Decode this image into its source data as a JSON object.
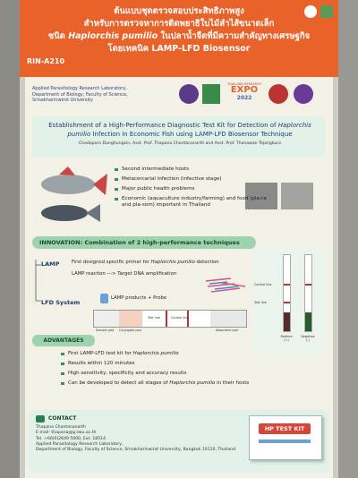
{
  "header": {
    "thai_lines": [
      "ต้นแบบชุดตรวจสอบประสิทธิภาพสูง",
      "สำหรับการตรวจหาการติดพยาธิใบไม้ลำไส้ขนาดเล็ก",
      [
        "ชนิด ",
        "Haplorchis pumilio",
        " ในปลาน้ำจืดที่มีความสำคัญทางเศรษฐกิจ"
      ],
      "โดยเทคนิค LAMP-LFD Biosensor"
    ],
    "code": "RIN-A210"
  },
  "affiliation": [
    "Applied Parasitology Research Laboratory,",
    "Department of Biology, Faculty of Science,",
    "Srinakharinwirot University"
  ],
  "expo": [
    "THAILAND RESEARCH",
    "EXPO",
    "2022"
  ],
  "title": [
    "Establishment of a High-Performance Diagnostic Test Kit for Detection of ",
    "Haplorchis pumilio",
    " Infection in Economic Fish using LAMP-LFD Biosensor Technique"
  ],
  "authors": "Chadaporn Dunghungzin, Asst. Prof. Thapana Chontananarth and Asst. Prof. Thanawan Tejangkura",
  "background": [
    "Second intermediate hosts",
    "Metacercarial infection (infective stage)",
    "Major public health problems",
    "Economic (aquaculture industry/farming) and food (pla-ra and pla-som) important in Thailand"
  ],
  "innovation": {
    "heading": "INNOVATION: Combination of 2 high-performance techniques",
    "lamp": "LAMP",
    "lamp_items": [
      [
        "First designed specific primer for ",
        "Haplorchis pumilio",
        " detection"
      ],
      "LAMP reaction ---> Target DNA amplification"
    ],
    "lfd": "LFD System",
    "lfd_item": "LAMP products + Probe",
    "strip_parts": [
      "Sample pad",
      "Conjugate pad",
      "Test line",
      "Control line",
      "Absorbent pad"
    ],
    "result_lines": [
      "Control line",
      "Test line"
    ],
    "results": [
      "Positive",
      "(+)",
      "Negative",
      "(-)"
    ]
  },
  "advantages": {
    "heading": "ADVANTAGES",
    "items": [
      [
        "First LAMP-LFD test kit for ",
        "Haplorchis pumilio"
      ],
      "Results within 120 minutes",
      "High sensitivity, specificity and accuracy results",
      [
        "Can be developed to detect all stages of ",
        "Haplorchis pumilio",
        " in their hosts"
      ]
    ]
  },
  "contact": {
    "heading": "CONTACT",
    "lines": [
      "Thapana Chontananarth",
      "E-mail: thapana@g.swu.ac.th",
      "Tel. +66(0)2649 5000, Ext. 18514",
      "Applied Parasitology Research Laboratory,",
      "Department of Biology, Faculty of Science, Srinakharinwirot University, Bangkok 10110, Thailand"
    ],
    "kit": "HP TEST KIT"
  }
}
